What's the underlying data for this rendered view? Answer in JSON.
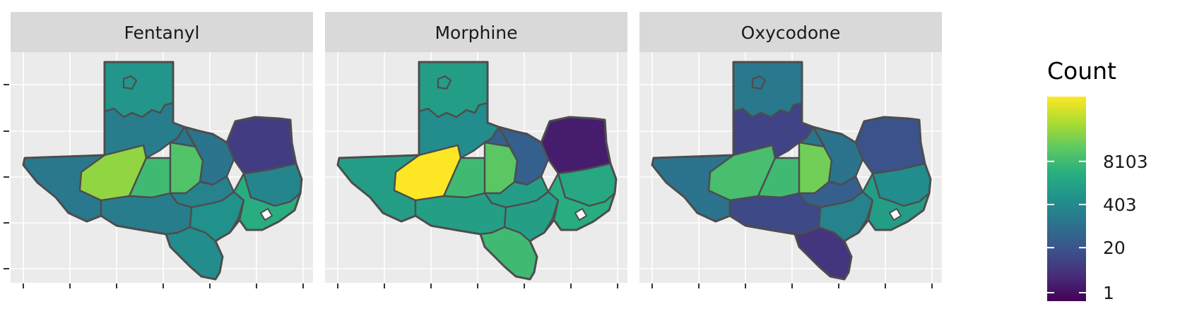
{
  "panels": [
    {
      "name": "Fentanyl",
      "regions": [
        {
          "region": "north-panhandle",
          "level": 0.52
        },
        {
          "region": "south-panhandle",
          "level": 0.42
        },
        {
          "region": "far-west",
          "level": 0.4
        },
        {
          "region": "permian-basin",
          "level": 0.83
        },
        {
          "region": "concho-valley",
          "level": 0.68
        },
        {
          "region": "west-central",
          "level": 0.72
        },
        {
          "region": "north-central",
          "level": 0.38
        },
        {
          "region": "upper-east",
          "level": 0.18
        },
        {
          "region": "southeast",
          "level": 0.45
        },
        {
          "region": "central",
          "level": 0.44
        },
        {
          "region": "alamo",
          "level": 0.42
        },
        {
          "region": "south-texas",
          "level": 0.48
        },
        {
          "region": "coastal-bend",
          "level": 0.5
        },
        {
          "region": "gulf-coast",
          "level": 0.62
        }
      ]
    },
    {
      "name": "Morphine",
      "regions": [
        {
          "region": "north-panhandle",
          "level": 0.55
        },
        {
          "region": "south-panhandle",
          "level": 0.48
        },
        {
          "region": "far-west",
          "level": 0.55
        },
        {
          "region": "permian-basin",
          "level": 1.0
        },
        {
          "region": "concho-valley",
          "level": 0.68
        },
        {
          "region": "west-central",
          "level": 0.74
        },
        {
          "region": "north-central",
          "level": 0.3
        },
        {
          "region": "upper-east",
          "level": 0.08
        },
        {
          "region": "southeast",
          "level": 0.6
        },
        {
          "region": "central",
          "level": 0.55
        },
        {
          "region": "alamo",
          "level": 0.56
        },
        {
          "region": "south-texas",
          "level": 0.68
        },
        {
          "region": "coastal-bend",
          "level": 0.56
        },
        {
          "region": "gulf-coast",
          "level": 0.62
        }
      ]
    },
    {
      "name": "Oxycodone",
      "regions": [
        {
          "region": "north-panhandle",
          "level": 0.4
        },
        {
          "region": "south-panhandle",
          "level": 0.2
        },
        {
          "region": "far-west",
          "level": 0.38
        },
        {
          "region": "permian-basin",
          "level": 0.7
        },
        {
          "region": "concho-valley",
          "level": 0.68
        },
        {
          "region": "west-central",
          "level": 0.78
        },
        {
          "region": "north-central",
          "level": 0.38
        },
        {
          "region": "upper-east",
          "level": 0.25
        },
        {
          "region": "southeast",
          "level": 0.48
        },
        {
          "region": "central",
          "level": 0.3
        },
        {
          "region": "alamo",
          "level": 0.22
        },
        {
          "region": "south-texas",
          "level": 0.15
        },
        {
          "region": "coastal-bend",
          "level": 0.44
        },
        {
          "region": "gulf-coast",
          "level": 0.55
        }
      ]
    }
  ],
  "legend": {
    "title": "Count",
    "breaks": [
      {
        "label": "8103",
        "level": 0.7
      },
      {
        "label": "403",
        "level": 0.47
      },
      {
        "label": "20",
        "level": 0.24
      },
      {
        "label": "1",
        "level": 0.0
      }
    ]
  },
  "colors": {
    "strip": "#d9d9d9",
    "panel": "#ebebeb",
    "grid": "#ffffff",
    "border": "#4d4d4d",
    "scale": [
      "#440154",
      "#472d7b",
      "#3b528b",
      "#2c728e",
      "#21918c",
      "#28ae80",
      "#5ec962",
      "#addc30",
      "#fde725"
    ]
  }
}
